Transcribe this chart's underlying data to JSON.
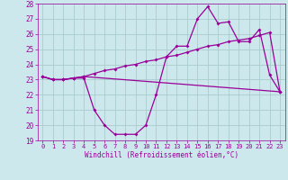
{
  "xlabel": "Windchill (Refroidissement éolien,°C)",
  "bg_color": "#cce8ec",
  "grid_color": "#aacccc",
  "line_color": "#990099",
  "xlim": [
    -0.5,
    23.5
  ],
  "ylim": [
    19,
    28
  ],
  "yticks": [
    19,
    20,
    21,
    22,
    23,
    24,
    25,
    26,
    27,
    28
  ],
  "xticks": [
    0,
    1,
    2,
    3,
    4,
    5,
    6,
    7,
    8,
    9,
    10,
    11,
    12,
    13,
    14,
    15,
    16,
    17,
    18,
    19,
    20,
    21,
    22,
    23
  ],
  "series1_x": [
    0,
    1,
    2,
    3,
    4,
    5,
    6,
    7,
    8,
    9,
    10,
    11,
    12,
    13,
    14,
    15,
    16,
    17,
    18,
    19,
    20,
    21,
    22,
    23
  ],
  "series1_y": [
    23.2,
    23.0,
    23.0,
    23.1,
    23.1,
    21.0,
    20.0,
    19.4,
    19.4,
    19.4,
    20.0,
    22.0,
    24.5,
    25.2,
    25.2,
    27.0,
    27.8,
    26.7,
    26.8,
    25.5,
    25.5,
    26.3,
    23.3,
    22.2
  ],
  "series2_x": [
    0,
    1,
    2,
    3,
    4,
    23
  ],
  "series2_y": [
    23.2,
    23.0,
    23.0,
    23.1,
    23.2,
    22.2
  ],
  "series3_x": [
    0,
    1,
    2,
    3,
    4,
    5,
    6,
    7,
    8,
    9,
    10,
    11,
    12,
    13,
    14,
    15,
    16,
    17,
    18,
    19,
    20,
    21,
    22,
    23
  ],
  "series3_y": [
    23.2,
    23.0,
    23.0,
    23.1,
    23.2,
    23.4,
    23.6,
    23.7,
    23.9,
    24.0,
    24.2,
    24.3,
    24.5,
    24.6,
    24.8,
    25.0,
    25.2,
    25.3,
    25.5,
    25.6,
    25.7,
    25.9,
    26.1,
    22.2
  ]
}
